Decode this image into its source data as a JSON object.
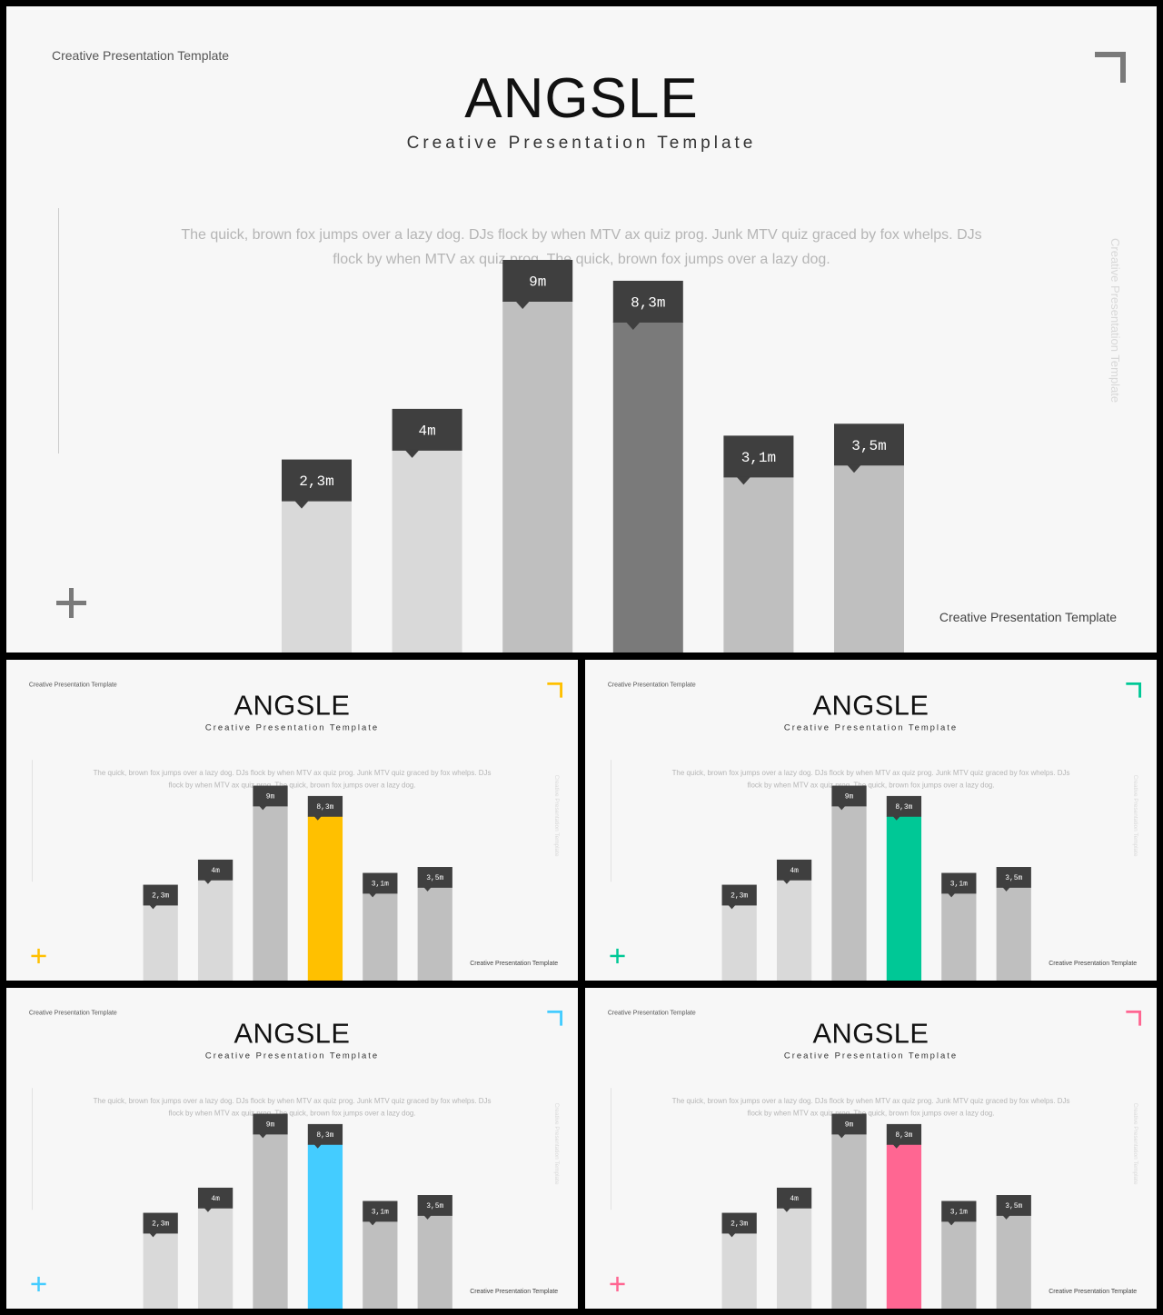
{
  "slides": [
    {
      "small_label": "Creative Presentation Template",
      "title": "ANGSLE",
      "subtitle": "Creative Presentation Template",
      "paragraph": "The quick, brown fox jumps over a lazy dog. DJs flock by when MTV ax quiz prog. Junk MTV quiz graced by fox whelps. DJs flock by when MTV ax quiz prog. The quick, brown fox jumps over a lazy dog.",
      "vertical_label": "Creative Presentation Template",
      "bottom_label": "Creative Presentation Template",
      "accent_color": "#7a7a7a"
    },
    {
      "small_label": "Creative Presentation Template",
      "title": "ANGSLE",
      "subtitle": "Creative Presentation Template",
      "paragraph": "The quick, brown fox jumps over a lazy dog. DJs flock by when MTV ax quiz prog. Junk MTV quiz graced by fox whelps. DJs flock by when MTV ax quiz prog. The quick, brown fox jumps over a lazy dog.",
      "vertical_label": "Creative Presentation Template",
      "bottom_label": "Creative Presentation Template",
      "accent_color": "#ffc000"
    },
    {
      "small_label": "Creative Presentation Template",
      "title": "ANGSLE",
      "subtitle": "Creative Presentation Template",
      "paragraph": "The quick, brown fox jumps over a lazy dog. DJs flock by when MTV ax quiz prog. Junk MTV quiz graced by fox whelps. DJs flock by when MTV ax quiz prog. The quick, brown fox jumps over a lazy dog.",
      "vertical_label": "Creative Presentation Template",
      "bottom_label": "Creative Presentation Template",
      "accent_color": "#00c896"
    },
    {
      "small_label": "Creative Presentation Template",
      "title": "ANGSLE",
      "subtitle": "Creative Presentation Template",
      "paragraph": "The quick, brown fox jumps over a lazy dog. DJs flock by when MTV ax quiz prog. Junk MTV quiz graced by fox whelps. DJs flock by when MTV ax quiz prog. The quick, brown fox jumps over a lazy dog.",
      "vertical_label": "Creative Presentation Template",
      "bottom_label": "Creative Presentation Template",
      "accent_color": "#44ccff"
    },
    {
      "small_label": "Creative Presentation Template",
      "title": "ANGSLE",
      "subtitle": "Creative Presentation Template",
      "paragraph": "The quick, brown fox jumps over a lazy dog. DJs flock by when MTV ax quiz prog. Junk MTV quiz graced by fox whelps. DJs flock by when MTV ax quiz prog. The quick, brown fox jumps over a lazy dog.",
      "vertical_label": "Creative Presentation Template",
      "bottom_label": "Creative Presentation Template",
      "accent_color": "#ff6692"
    }
  ],
  "chart_data": {
    "type": "bar",
    "values": [
      2.3,
      4,
      9,
      8.3,
      3.1,
      3.5
    ],
    "value_labels": [
      "2,3m",
      "4m",
      "9m",
      "8,3m",
      "3,1m",
      "3,5m"
    ],
    "highlight_index": 3,
    "bar_colors": [
      "#d9d9d9",
      "#d9d9d9",
      "#bfbfbf",
      "accent",
      "#bfbfbf",
      "#bfbfbf"
    ],
    "label_box_color": "#3f3f3f",
    "ylim": [
      0,
      9
    ]
  }
}
